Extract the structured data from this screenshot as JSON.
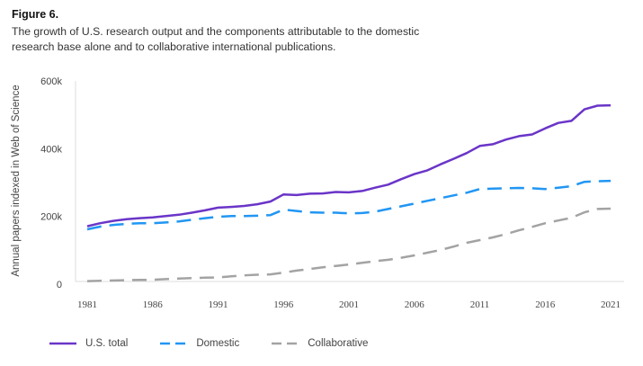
{
  "figure": {
    "label": "Figure 6.",
    "caption": "The growth of U.S. research output and the components attributable to the domestic research base alone and to collaborative international publications."
  },
  "chart_data": {
    "type": "line",
    "title": "The growth of U.S. research output and the components attributable to the domestic research base alone and to collaborative international publications.",
    "xlabel": "",
    "ylabel": "Annual papers indexed in Web of Science",
    "x": [
      1981,
      1982,
      1983,
      1984,
      1985,
      1986,
      1987,
      1988,
      1989,
      1990,
      1991,
      1992,
      1993,
      1994,
      1995,
      1996,
      1997,
      1998,
      1999,
      2000,
      2001,
      2002,
      2003,
      2004,
      2005,
      2006,
      2007,
      2008,
      2009,
      2010,
      2011,
      2012,
      2013,
      2014,
      2015,
      2016,
      2017,
      2018,
      2019,
      2020,
      2021
    ],
    "xlim": [
      1981,
      2021
    ],
    "ylim": [
      0,
      600000
    ],
    "x_ticks": [
      "1981",
      "1986",
      "1991",
      "1996",
      "2001",
      "2006",
      "2011",
      "2016",
      "2021"
    ],
    "y_ticks": [
      {
        "value": 0,
        "label": "0"
      },
      {
        "value": 200000,
        "label": "200k"
      },
      {
        "value": 400000,
        "label": "400k"
      },
      {
        "value": 600000,
        "label": "600k"
      }
    ],
    "grid": false,
    "legend_position": "bottom-left",
    "series": [
      {
        "name": "U.S. total",
        "color": "#6a35c8",
        "style": "solid",
        "values": [
          171000,
          180000,
          187000,
          192000,
          195000,
          197000,
          201000,
          205000,
          211000,
          218000,
          226000,
          228000,
          231000,
          236000,
          244000,
          265000,
          263000,
          267000,
          268000,
          272000,
          271000,
          275000,
          285000,
          294000,
          310000,
          325000,
          336000,
          354000,
          370000,
          387000,
          408000,
          413000,
          427000,
          437000,
          442000,
          460000,
          476000,
          482000,
          516000,
          527000,
          528000
        ]
      },
      {
        "name": "Domestic",
        "color": "#2196f3",
        "style": "dashed",
        "values": [
          162000,
          170000,
          175000,
          178000,
          180000,
          180000,
          182000,
          185000,
          190000,
          195000,
          199000,
          201000,
          201000,
          202000,
          204000,
          220000,
          216000,
          212000,
          211000,
          211000,
          209000,
          210000,
          214000,
          222000,
          230000,
          238000,
          246000,
          254000,
          262000,
          270000,
          281000,
          282000,
          283000,
          284000,
          283000,
          281000,
          285000,
          289000,
          302000,
          304000,
          305000
        ]
      },
      {
        "name": "Collaborative",
        "color": "#a3a3a3",
        "style": "dashed",
        "values": [
          9000,
          10000,
          11000,
          12000,
          12500,
          13000,
          15000,
          16500,
          18000,
          19000,
          20000,
          23000,
          26000,
          28000,
          29000,
          34000,
          40000,
          45000,
          50000,
          54000,
          58000,
          63000,
          68000,
          72000,
          78000,
          85000,
          93000,
          101000,
          111000,
          122000,
          130000,
          138000,
          148000,
          159000,
          169000,
          180000,
          188000,
          196000,
          212000,
          222000,
          223000
        ]
      }
    ]
  }
}
